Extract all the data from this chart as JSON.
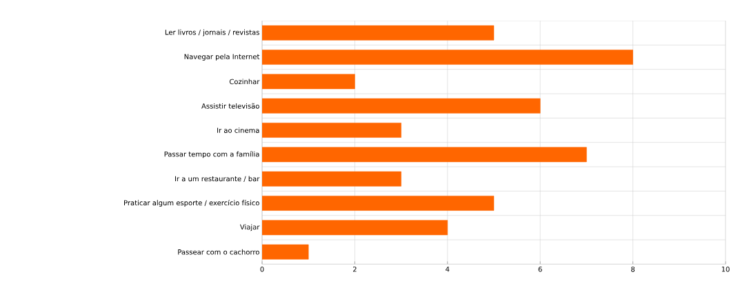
{
  "chart_data": {
    "type": "bar",
    "orientation": "horizontal",
    "categories": [
      "Ler livros / jornais / revistas",
      "Navegar pela Internet",
      "Cozinhar",
      "Assistir televisão",
      "Ir ao cinema",
      "Passar tempo com a família",
      "Ir a um restaurante / bar",
      "Praticar algum esporte / exercício físico",
      "Viajar",
      "Passear com o cachorro"
    ],
    "values": [
      5,
      8,
      2,
      6,
      3,
      7,
      3,
      5,
      4,
      1
    ],
    "color": "#ff6600",
    "xlim": [
      0,
      10
    ],
    "xticks": [
      0,
      2,
      4,
      6,
      8,
      10
    ],
    "grid": true
  }
}
